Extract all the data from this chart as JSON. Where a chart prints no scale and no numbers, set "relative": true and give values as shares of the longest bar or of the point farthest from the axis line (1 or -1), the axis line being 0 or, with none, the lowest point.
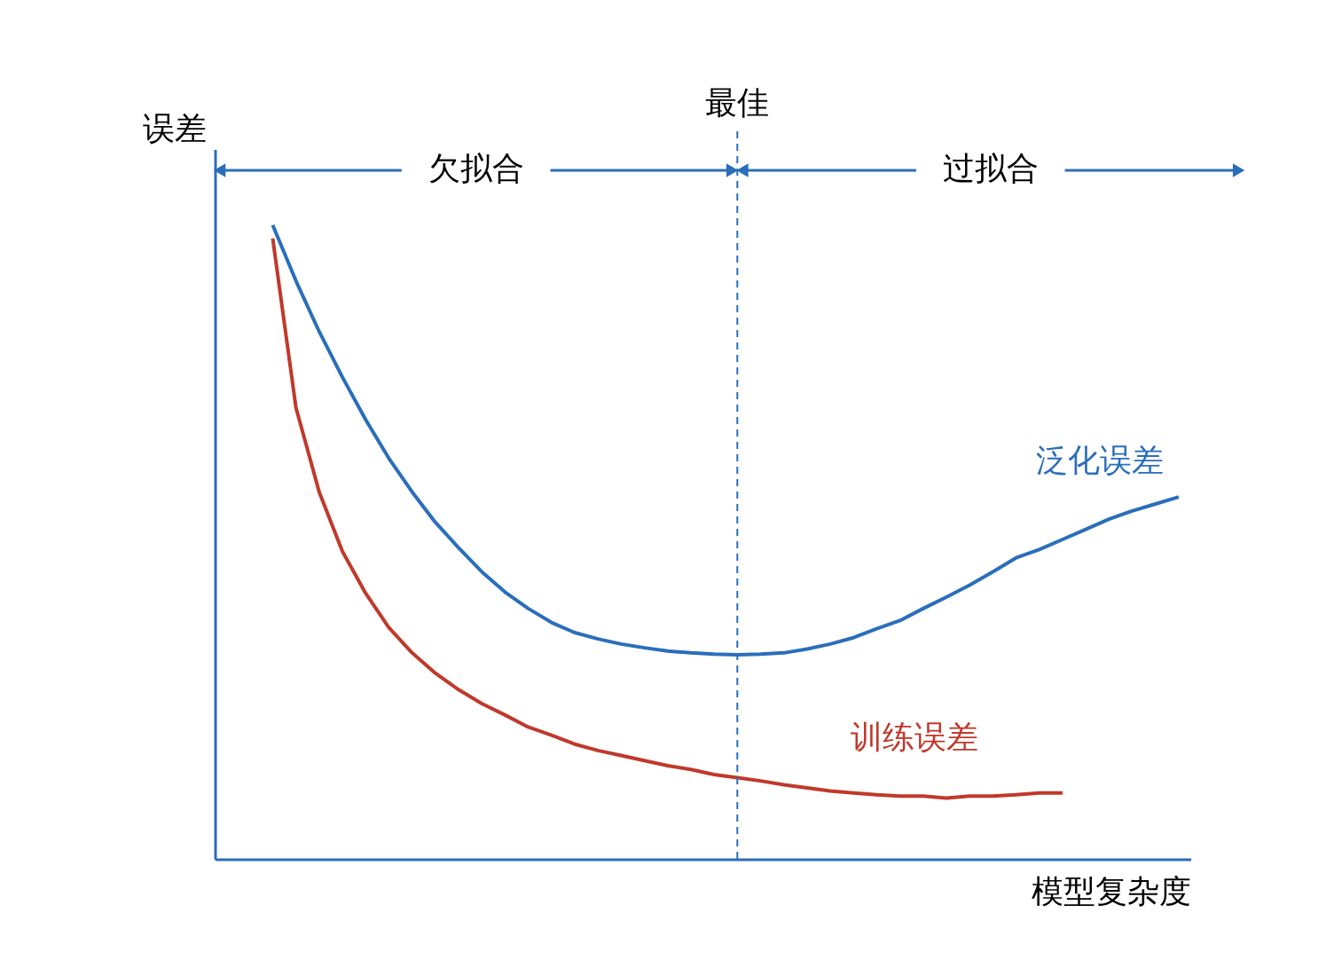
{
  "chart_data": {
    "type": "line",
    "relative": true,
    "xlabel": "模型复杂度",
    "ylabel": "误差",
    "categories": [
      null,
      null,
      null,
      null,
      null,
      null,
      null,
      null,
      null,
      null,
      null,
      null,
      null,
      null,
      null,
      null,
      null,
      null,
      null,
      null,
      null,
      null,
      null,
      null,
      null,
      null,
      null,
      null,
      null,
      null,
      null,
      null,
      null,
      null,
      null,
      null,
      null,
      null,
      null,
      null
    ],
    "series": [
      {
        "name": "泛化误差",
        "color": "#2a6ebb",
        "values": [
          1.0,
          0.912,
          0.832,
          0.76,
          0.693,
          0.632,
          0.579,
          0.531,
          0.491,
          0.453,
          0.421,
          0.395,
          0.373,
          0.357,
          0.347,
          0.339,
          0.333,
          0.328,
          0.325,
          0.323,
          0.322,
          0.323,
          0.325,
          0.331,
          0.339,
          0.349,
          0.363,
          0.376,
          0.395,
          0.413,
          0.432,
          0.453,
          0.475,
          0.488,
          0.504,
          0.52,
          0.536,
          0.549,
          0.56,
          0.571
        ]
      },
      {
        "name": "训练误差",
        "color": "#c0392b",
        "values": [
          0.979,
          0.712,
          0.579,
          0.485,
          0.419,
          0.365,
          0.325,
          0.293,
          0.267,
          0.245,
          0.227,
          0.208,
          0.195,
          0.181,
          0.171,
          0.163,
          0.155,
          0.147,
          0.141,
          0.133,
          0.128,
          0.123,
          0.117,
          0.112,
          0.107,
          0.104,
          0.101,
          0.099,
          0.099,
          0.096,
          0.099,
          0.099,
          0.101,
          0.104,
          0.104,
          null,
          null,
          null,
          null,
          null
        ]
      }
    ],
    "annotations": [
      "最佳",
      "欠拟合",
      "过拟合"
    ],
    "legend": false,
    "grid": false,
    "tick_labels": false,
    "line_style": "solid",
    "marker": "none"
  }
}
